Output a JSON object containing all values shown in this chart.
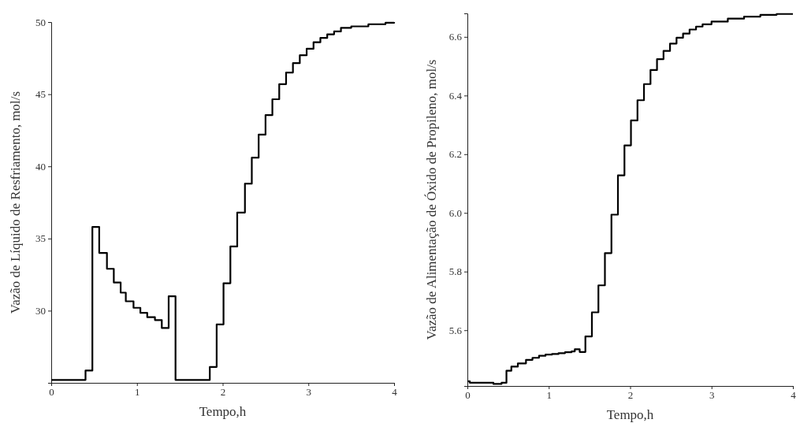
{
  "chart_data": [
    {
      "type": "step",
      "xlabel": "Tempo,h",
      "ylabel": "Vazão de Líquido de Resfriamento, mol/s",
      "xlim": [
        0,
        4
      ],
      "ylim": [
        25,
        50
      ],
      "xticks": [
        0,
        1,
        2,
        3,
        4
      ],
      "yticks": [
        30,
        35,
        40,
        45,
        50
      ],
      "grid": false,
      "x": [
        0,
        0.4,
        0.48,
        0.56,
        0.65,
        0.73,
        0.81,
        0.87,
        0.96,
        1.04,
        1.12,
        1.21,
        1.29,
        1.37,
        1.45,
        1.85,
        1.93,
        2.01,
        2.09,
        2.17,
        2.26,
        2.34,
        2.42,
        2.5,
        2.58,
        2.66,
        2.74,
        2.82,
        2.9,
        2.98,
        3.06,
        3.14,
        3.22,
        3.3,
        3.38,
        3.5,
        3.7,
        3.9,
        4
      ],
      "series": [
        {
          "color": "#000000",
          "values": [
            25.2,
            25.85,
            35.8,
            34.0,
            32.9,
            31.95,
            31.25,
            30.65,
            30.2,
            29.85,
            29.55,
            29.35,
            28.8,
            31.0,
            25.2,
            26.1,
            29.05,
            31.9,
            34.45,
            36.8,
            38.8,
            40.6,
            42.2,
            43.55,
            44.65,
            45.7,
            46.5,
            47.15,
            47.7,
            48.15,
            48.6,
            48.9,
            49.15,
            49.35,
            49.6,
            49.7,
            49.85,
            49.95,
            50.0
          ]
        }
      ]
    },
    {
      "type": "step",
      "xlabel": "Tempo,h",
      "ylabel": "Vazão de Alimentação de Óxido de Propileno, mol/s",
      "xlim": [
        0,
        4
      ],
      "ylim": [
        5.41,
        6.68
      ],
      "xticks": [
        0,
        1,
        2,
        3,
        4
      ],
      "yticks": [
        5.6,
        5.8,
        {
          "value": 6,
          "label": "6.0"
        },
        6.2,
        6.4,
        6.6
      ],
      "grid": false,
      "x": [
        0,
        0.03,
        0.32,
        0.42,
        0.48,
        0.54,
        0.62,
        0.72,
        0.8,
        0.88,
        0.96,
        1.04,
        1.12,
        1.2,
        1.28,
        1.32,
        1.38,
        1.45,
        1.53,
        1.61,
        1.69,
        1.77,
        1.85,
        1.93,
        2.01,
        2.09,
        2.17,
        2.25,
        2.33,
        2.41,
        2.49,
        2.57,
        2.65,
        2.73,
        2.81,
        2.89,
        3.0,
        3.2,
        3.4,
        3.6,
        3.8,
        4
      ],
      "series": [
        {
          "color": "#000000",
          "values": [
            5.426,
            5.421,
            5.417,
            5.421,
            5.462,
            5.476,
            5.487,
            5.499,
            5.506,
            5.513,
            5.517,
            5.519,
            5.522,
            5.525,
            5.528,
            5.535,
            5.526,
            5.579,
            5.661,
            5.753,
            5.863,
            5.994,
            6.128,
            6.23,
            6.315,
            6.384,
            6.439,
            6.487,
            6.524,
            6.552,
            6.577,
            6.597,
            6.611,
            6.625,
            6.635,
            6.643,
            6.652,
            6.662,
            6.669,
            6.675,
            6.678,
            6.678
          ]
        }
      ]
    }
  ]
}
